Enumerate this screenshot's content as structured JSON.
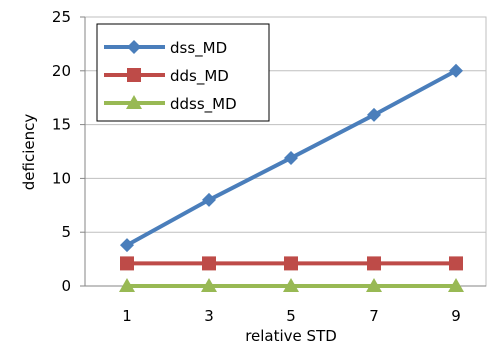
{
  "chart_data": {
    "type": "line",
    "title": "",
    "xlabel": "relative STD",
    "ylabel": "deficiency",
    "x": [
      1,
      3,
      5,
      7,
      9
    ],
    "ylim": [
      0,
      25
    ],
    "yticks": [
      0,
      5,
      10,
      15,
      20,
      25
    ],
    "grid": "horizontal",
    "legend_position": "top-left",
    "series": [
      {
        "name": "dss_MD",
        "color": "#4a7ebb",
        "marker": "diamond",
        "values": [
          3.8,
          8.0,
          11.9,
          15.9,
          20.0
        ]
      },
      {
        "name": "dds_MD",
        "color": "#be4b48",
        "marker": "square",
        "values": [
          2.1,
          2.1,
          2.1,
          2.1,
          2.1
        ]
      },
      {
        "name": "ddss_MD",
        "color": "#98b954",
        "marker": "triangle",
        "values": [
          0.0,
          0.0,
          0.0,
          0.0,
          0.0
        ]
      }
    ]
  }
}
